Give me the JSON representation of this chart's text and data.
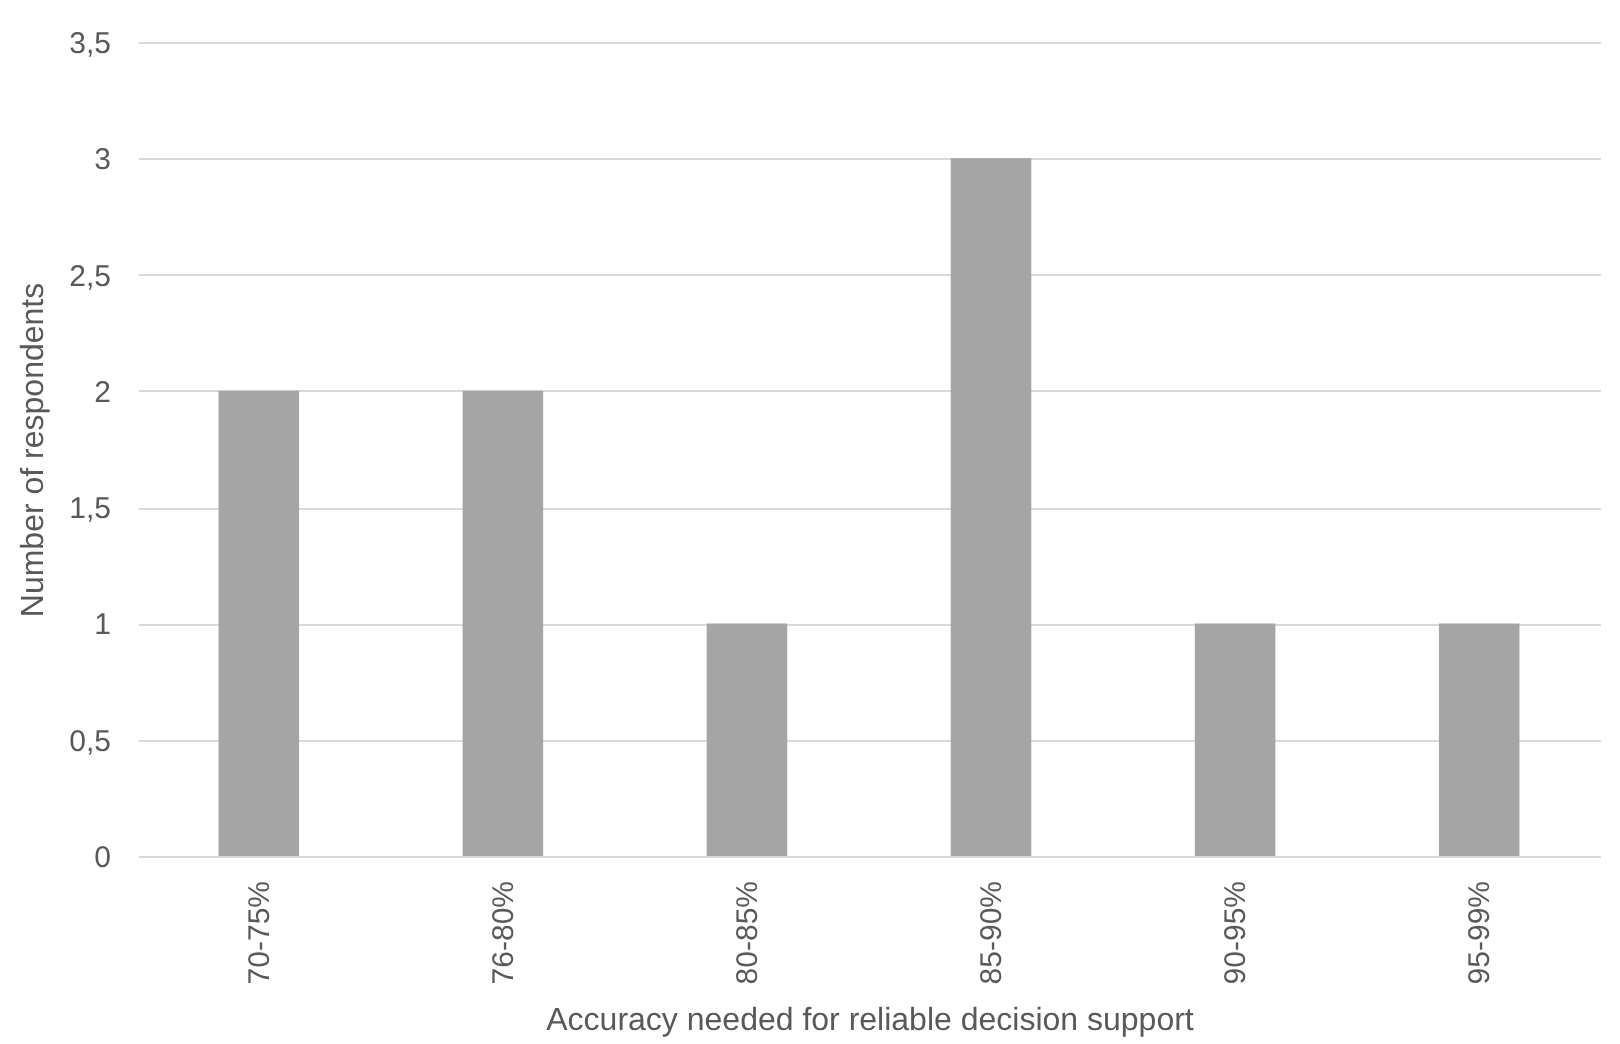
{
  "chart_data": {
    "type": "bar",
    "xlabel": "Accuracy needed for reliable decision support",
    "ylabel": "Number of respondents",
    "categories": [
      "70-75%",
      "76-80%",
      "80-85%",
      "85-90%",
      "90-95%",
      "95-99%"
    ],
    "values": [
      2,
      2,
      1,
      3,
      1,
      1
    ],
    "color": "#a5a5a5",
    "ylim": [
      0,
      3.5
    ],
    "yticks": [
      0,
      {
        "value": 0.5,
        "label": "0,5"
      },
      1,
      {
        "value": 1.5,
        "label": "1,5"
      },
      2,
      {
        "value": 2.5,
        "label": "2,5"
      },
      3,
      {
        "value": 3.5,
        "label": "3,5"
      }
    ],
    "grid": "y"
  }
}
